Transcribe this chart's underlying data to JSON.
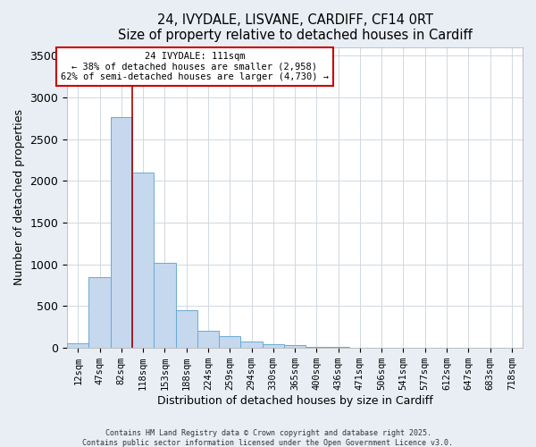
{
  "title_line1": "24, IVYDALE, LISVANE, CARDIFF, CF14 0RT",
  "title_line2": "Size of property relative to detached houses in Cardiff",
  "xlabel": "Distribution of detached houses by size in Cardiff",
  "ylabel": "Number of detached properties",
  "bar_labels": [
    "12sqm",
    "47sqm",
    "82sqm",
    "118sqm",
    "153sqm",
    "188sqm",
    "224sqm",
    "259sqm",
    "294sqm",
    "330sqm",
    "365sqm",
    "400sqm",
    "436sqm",
    "471sqm",
    "506sqm",
    "541sqm",
    "577sqm",
    "612sqm",
    "647sqm",
    "683sqm",
    "718sqm"
  ],
  "bar_values": [
    60,
    850,
    2760,
    2100,
    1020,
    455,
    210,
    145,
    75,
    50,
    30,
    15,
    8,
    4,
    2,
    1,
    1,
    0,
    0,
    0,
    0
  ],
  "bar_color": "#c5d8ee",
  "bar_edgecolor": "#6aaad4",
  "vline_color": "#aa0000",
  "vline_x_index": 2.5,
  "ylim": [
    0,
    3600
  ],
  "yticks": [
    0,
    500,
    1000,
    1500,
    2000,
    2500,
    3000,
    3500
  ],
  "annotation_title": "24 IVYDALE: 111sqm",
  "annotation_line1": "← 38% of detached houses are smaller (2,958)",
  "annotation_line2": "62% of semi-detached houses are larger (4,730) →",
  "annotation_box_color": "#ffffff",
  "annotation_box_edgecolor": "#cc0000",
  "footer_line1": "Contains HM Land Registry data © Crown copyright and database right 2025.",
  "footer_line2": "Contains public sector information licensed under the Open Government Licence v3.0.",
  "bg_color": "#e8eef4",
  "plot_bg_color": "#ffffff",
  "grid_color": "#d0d8e0"
}
